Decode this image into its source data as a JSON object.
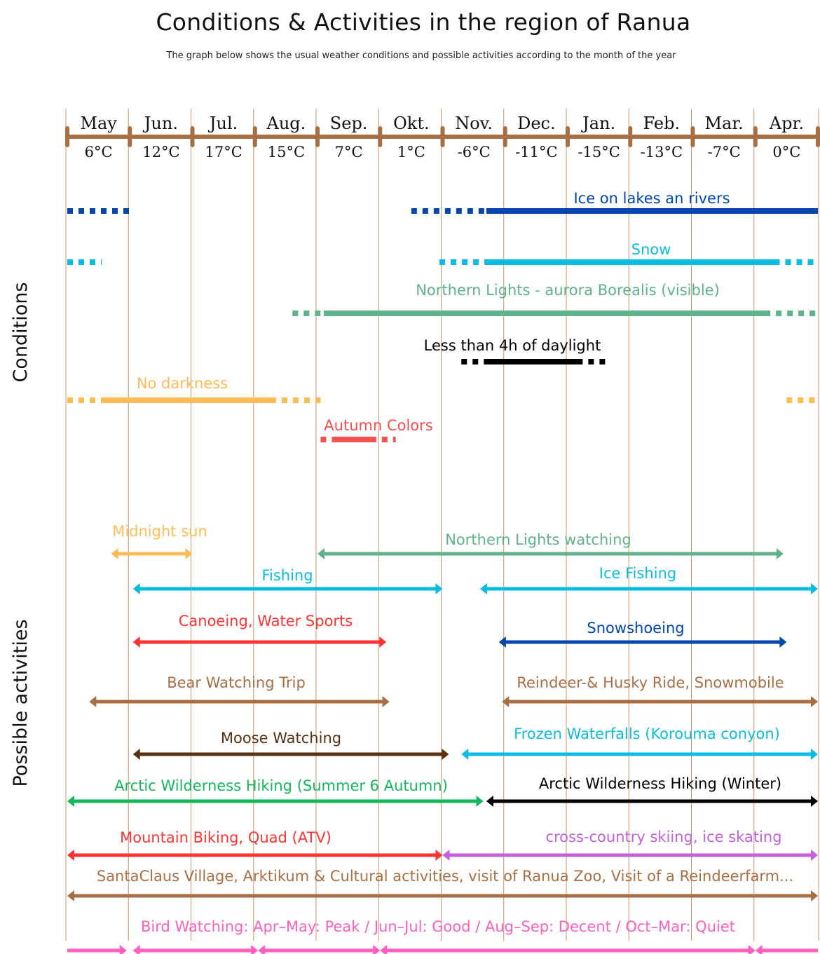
{
  "header": {
    "title": "Conditions & Activities in the region of Ranua",
    "subtitle": "The graph below shows the usual weather conditions and possible activities according to the month of the year"
  },
  "chart_data": {
    "type": "timeline",
    "title": "Conditions & Activities in the region of Ranua",
    "subtitle": "The graph below shows the usual weather conditions and possible activities according to the month of the year",
    "axis_color": "#a86f45",
    "gridline_color": "#c9946f",
    "months": [
      "May",
      "Jun.",
      "Jul.",
      "Aug.",
      "Sep.",
      "Okt.",
      "Nov.",
      "Dec.",
      "Jan.",
      "Feb.",
      "Mar.",
      "Apr."
    ],
    "temperatures": [
      "6°C",
      "12°C",
      "17°C",
      "15°C",
      "7°C",
      "1°C",
      "-6°C",
      "-11°C",
      "-15°C",
      "-13°C",
      "-7°C",
      "0°C"
    ],
    "section_labels": {
      "conditions": "Conditions",
      "activities": "Possible activities"
    },
    "conditions": [
      {
        "label": "Ice on lakes an rivers",
        "color": "#0047ab",
        "segments": [
          {
            "style": "dotted",
            "start": 0.0,
            "end": 1.05
          },
          {
            "style": "dotted",
            "start": 5.5,
            "end": 6.7
          },
          {
            "style": "solid",
            "start": 6.7,
            "end": 12.0
          }
        ]
      },
      {
        "label": "Snow",
        "color": "#0abde0",
        "segments": [
          {
            "style": "dotted",
            "start": 0.0,
            "end": 0.55
          },
          {
            "style": "dotted",
            "start": 5.95,
            "end": 6.75
          },
          {
            "style": "solid",
            "start": 6.75,
            "end": 11.3
          },
          {
            "style": "dotted",
            "start": 11.3,
            "end": 12.0
          }
        ]
      },
      {
        "label": "Northern Lights - aurora Borealis (visible)",
        "color": "#5fb38a",
        "segments": [
          {
            "style": "dotted",
            "start": 3.6,
            "end": 4.1
          },
          {
            "style": "solid",
            "start": 4.1,
            "end": 11.15
          },
          {
            "style": "dotted",
            "start": 11.15,
            "end": 12.0
          }
        ]
      },
      {
        "label": "Less than 4h of daylight",
        "color": "#000000",
        "segments": [
          {
            "style": "dotted",
            "start": 6.3,
            "end": 6.7
          },
          {
            "style": "solid",
            "start": 6.7,
            "end": 8.15
          },
          {
            "style": "dotted",
            "start": 8.15,
            "end": 8.6
          }
        ]
      },
      {
        "label": "No darkness",
        "color": "#ffbb55",
        "segments": [
          {
            "style": "dotted",
            "start": 0.0,
            "end": 0.6
          },
          {
            "style": "solid",
            "start": 0.6,
            "end": 3.25
          },
          {
            "style": "dotted",
            "start": 3.25,
            "end": 4.05
          },
          {
            "style": "dotted",
            "start": 11.5,
            "end": 12.0
          }
        ]
      },
      {
        "label": "Autumn Colors",
        "color": "#f54f4f",
        "segments": [
          {
            "style": "dotted",
            "start": 4.05,
            "end": 4.25
          },
          {
            "style": "solid",
            "start": 4.25,
            "end": 4.85
          },
          {
            "style": "dotted",
            "start": 4.85,
            "end": 5.25
          }
        ]
      }
    ],
    "activities": [
      {
        "label": "Midnight sun",
        "color": "#ffbb55",
        "start": 0.7,
        "end": 2.0
      },
      {
        "label": "Northern Lights watching",
        "color": "#5fb38a",
        "start": 4.0,
        "end": 11.45
      },
      {
        "label": "Fishing",
        "color": "#0abde0",
        "start": 1.05,
        "end": 6.0
      },
      {
        "label": "Ice Fishing",
        "color": "#0abde0",
        "start": 6.6,
        "end": 12.0
      },
      {
        "label": "Canoeing, Water Sports",
        "color": "#ff3333",
        "start": 1.05,
        "end": 5.1
      },
      {
        "label": "Snowshoeing",
        "color": "#0047ab",
        "start": 6.9,
        "end": 11.5
      },
      {
        "label": "Bear Watching Trip",
        "color": "#a86f45",
        "start": 0.35,
        "end": 5.15
      },
      {
        "label": "Reindeer-& Husky Ride, Snowmobile",
        "color": "#a86f45",
        "start": 6.95,
        "end": 12.0
      },
      {
        "label": "Moose Watching",
        "color": "#5a3111",
        "start": 1.05,
        "end": 6.1
      },
      {
        "label": "Frozen Waterfalls (Korouma conyon)",
        "color": "#0abde0",
        "start": 6.3,
        "end": 12.0
      },
      {
        "label": "Arctic Wilderness Hiking (Summer 6 Autumn)",
        "color": "#12b85a",
        "start": 0.0,
        "end": 6.65
      },
      {
        "label": "Arctic Wilderness Hiking (Winter)",
        "color": "#000000",
        "start": 6.7,
        "end": 12.0
      },
      {
        "label": "Mountain Biking, Quad (ATV)",
        "color": "#ff3333",
        "start": 0.0,
        "end": 6.0
      },
      {
        "label": "cross-country skiing, ice skating",
        "color": "#c45fe0",
        "start": 6.0,
        "end": 12.0
      },
      {
        "label": "SantaClaus Village, Arktikum  & Cultural activities, visit of Ranua Zoo, Visit of a Reindeerfarm...",
        "color": "#a86f45",
        "start": 0.0,
        "end": 12.0
      },
      {
        "label": "Bird Watching: Apr–May: Peak / Jun–Jul: Good / Aug–Sep: Decent / Oct–Mar: Quiet",
        "color": "#ff5fbf",
        "segments": [
          {
            "start": 0.0,
            "end": 0.95,
            "heads": "end"
          },
          {
            "start": 1.05,
            "end": 3.05,
            "heads": "both"
          },
          {
            "start": 3.05,
            "end": 5.0,
            "heads": "both"
          },
          {
            "start": 5.0,
            "end": 11.0,
            "heads": "both"
          },
          {
            "start": 11.0,
            "end": 12.0,
            "heads": "start"
          }
        ]
      }
    ]
  }
}
